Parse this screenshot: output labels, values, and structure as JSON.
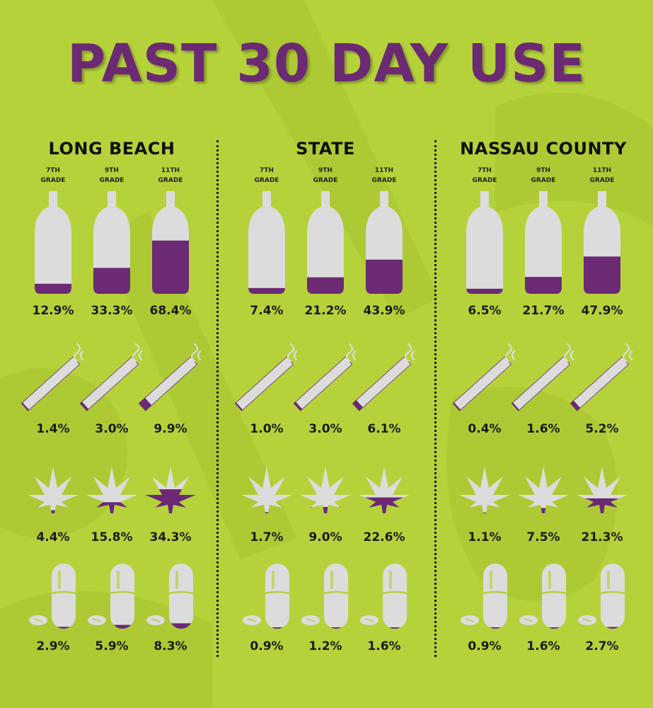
{
  "title": "PAST 30 DAY USE",
  "colors": {
    "background": "#b6d23b",
    "title": "#6b2a73",
    "fill": "#6b2a73",
    "icon_empty": "#dcdcdc",
    "text": "#1a1a1a"
  },
  "chart_data": {
    "type": "table",
    "title": "PAST 30 DAY USE",
    "grades": [
      {
        "line1": "7TH",
        "line2": "GRADE"
      },
      {
        "line1": "9TH",
        "line2": "GRADE"
      },
      {
        "line1": "11TH",
        "line2": "GRADE"
      }
    ],
    "categories": [
      "7TH GRADE",
      "9TH GRADE",
      "11TH GRADE"
    ],
    "substance_icons": [
      "bottle-icon",
      "cigarette-icon",
      "cannabis-leaf-icon",
      "pill-icon"
    ],
    "regions": [
      {
        "name": "LONG BEACH",
        "rows": [
          {
            "icon": "bottle-icon",
            "values": [
              12.9,
              33.3,
              68.4
            ],
            "labels": [
              "12.9%",
              "33.3%",
              "68.4%"
            ]
          },
          {
            "icon": "cigarette-icon",
            "values": [
              1.4,
              3.0,
              9.9
            ],
            "labels": [
              "1.4%",
              "3.0%",
              "9.9%"
            ]
          },
          {
            "icon": "cannabis-leaf-icon",
            "values": [
              4.4,
              15.8,
              34.3
            ],
            "labels": [
              "4.4%",
              "15.8%",
              "34.3%"
            ]
          },
          {
            "icon": "pill-icon",
            "values": [
              2.9,
              5.9,
              8.3
            ],
            "labels": [
              "2.9%",
              "5.9%",
              "8.3%"
            ]
          }
        ]
      },
      {
        "name": "STATE",
        "rows": [
          {
            "icon": "bottle-icon",
            "values": [
              7.4,
              21.2,
              43.9
            ],
            "labels": [
              "7.4%",
              "21.2%",
              "43.9%"
            ]
          },
          {
            "icon": "cigarette-icon",
            "values": [
              1.0,
              3.0,
              6.1
            ],
            "labels": [
              "1.0%",
              "3.0%",
              "6.1%"
            ]
          },
          {
            "icon": "cannabis-leaf-icon",
            "values": [
              1.7,
              9.0,
              22.6
            ],
            "labels": [
              "1.7%",
              "9.0%",
              "22.6%"
            ]
          },
          {
            "icon": "pill-icon",
            "values": [
              0.9,
              1.2,
              1.6
            ],
            "labels": [
              "0.9%",
              "1.2%",
              "1.6%"
            ]
          }
        ]
      },
      {
        "name": "NASSAU COUNTY",
        "rows": [
          {
            "icon": "bottle-icon",
            "values": [
              6.5,
              21.7,
              47.9
            ],
            "labels": [
              "6.5%",
              "21.7%",
              "47.9%"
            ]
          },
          {
            "icon": "cigarette-icon",
            "values": [
              0.4,
              1.6,
              5.2
            ],
            "labels": [
              "0.4%",
              "1.6%",
              "5.2%"
            ]
          },
          {
            "icon": "cannabis-leaf-icon",
            "values": [
              1.1,
              7.5,
              21.3
            ],
            "labels": [
              "1.1%",
              "7.5%",
              "21.3%"
            ]
          },
          {
            "icon": "pill-icon",
            "values": [
              0.9,
              1.6,
              2.7
            ],
            "labels": [
              "0.9%",
              "1.6%",
              "2.7%"
            ]
          }
        ]
      }
    ]
  }
}
